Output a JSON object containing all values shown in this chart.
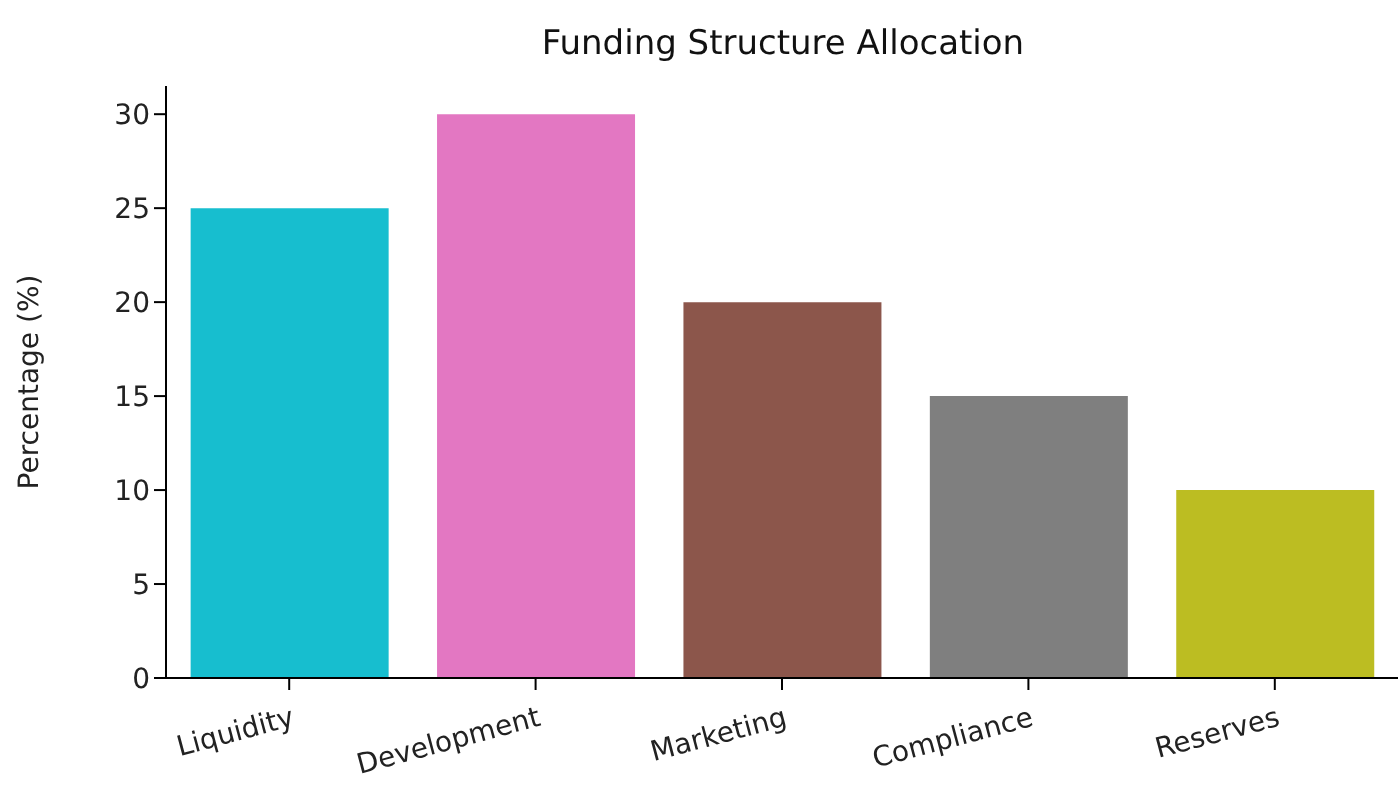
{
  "chart_data": {
    "type": "bar",
    "title": "Funding Structure Allocation",
    "ylabel": "Percentage (%)",
    "categories": [
      "Liquidity",
      "Development",
      "Marketing",
      "Compliance",
      "Reserves"
    ],
    "values": [
      25,
      30,
      20,
      15,
      10
    ],
    "colors": [
      "#17becf",
      "#e377c2",
      "#8c564b",
      "#7f7f7f",
      "#bcbd22"
    ],
    "ylim": [
      0,
      31.5
    ],
    "yticks": [
      0,
      5,
      10,
      15,
      20,
      25,
      30
    ],
    "grid": false,
    "legend": false
  }
}
